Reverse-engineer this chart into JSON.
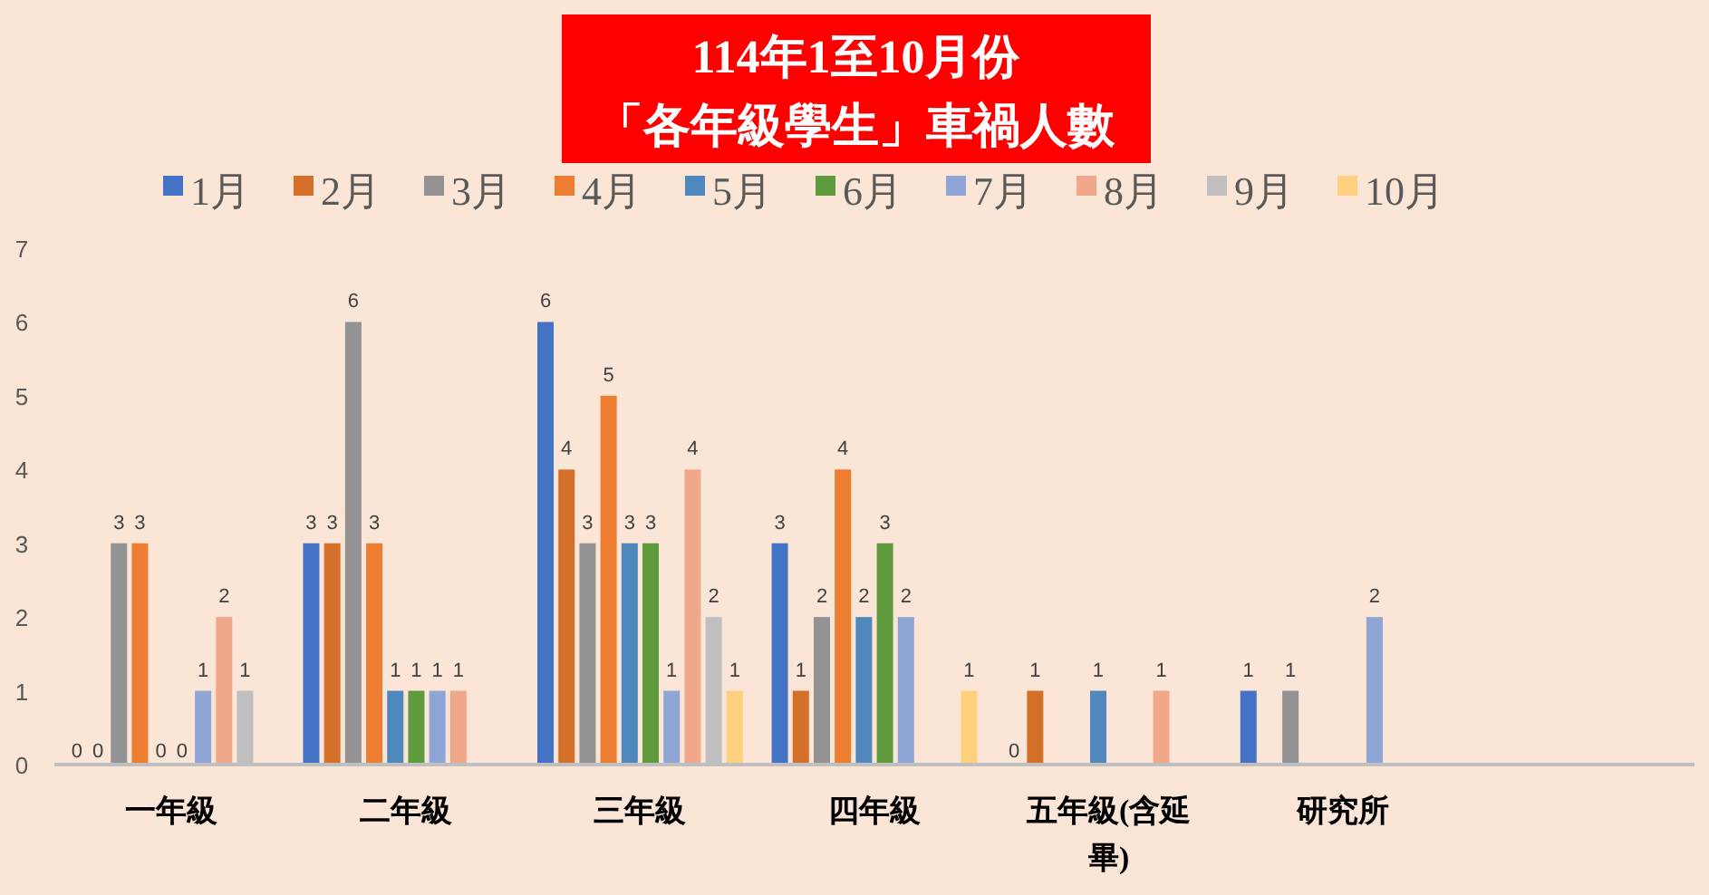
{
  "chart_data": {
    "type": "bar",
    "title": "114年1至10月份",
    "subtitle": "「各年級學生」車禍人數",
    "categories": [
      "一年級",
      "二年級",
      "三年級",
      "四年級",
      "五年級(含延畢)",
      "研究所",
      null
    ],
    "series": [
      {
        "name": "1月",
        "color": "#4472c4",
        "values": [
          0,
          3,
          6,
          3,
          0,
          1,
          null
        ]
      },
      {
        "name": "2月",
        "color": "#d4702a",
        "values": [
          0,
          3,
          4,
          1,
          1,
          null,
          null
        ]
      },
      {
        "name": "3月",
        "color": "#939393",
        "values": [
          3,
          6,
          3,
          2,
          null,
          1,
          null
        ]
      },
      {
        "name": "4月",
        "color": "#ed7d31",
        "values": [
          3,
          3,
          5,
          4,
          null,
          null,
          null
        ]
      },
      {
        "name": "5月",
        "color": "#4e88bd",
        "values": [
          0,
          1,
          3,
          2,
          1,
          null,
          null
        ]
      },
      {
        "name": "6月",
        "color": "#5f9a3c",
        "values": [
          0,
          1,
          3,
          3,
          null,
          null,
          null
        ]
      },
      {
        "name": "7月",
        "color": "#8fa5d6",
        "values": [
          1,
          1,
          1,
          2,
          null,
          2,
          null
        ]
      },
      {
        "name": "8月",
        "color": "#f1a88a",
        "values": [
          2,
          1,
          4,
          null,
          1,
          null,
          null
        ]
      },
      {
        "name": "9月",
        "color": "#bfbfbf",
        "values": [
          1,
          null,
          2,
          null,
          null,
          null,
          null
        ]
      },
      {
        "name": "10月",
        "color": "#ffd17f",
        "values": [
          null,
          null,
          1,
          1,
          null,
          null,
          null
        ]
      }
    ],
    "ylim": [
      0,
      7
    ],
    "yticks": [
      0,
      1,
      2,
      3,
      4,
      5,
      6,
      7
    ],
    "grid": false,
    "legend": "top",
    "data_labels": true
  }
}
